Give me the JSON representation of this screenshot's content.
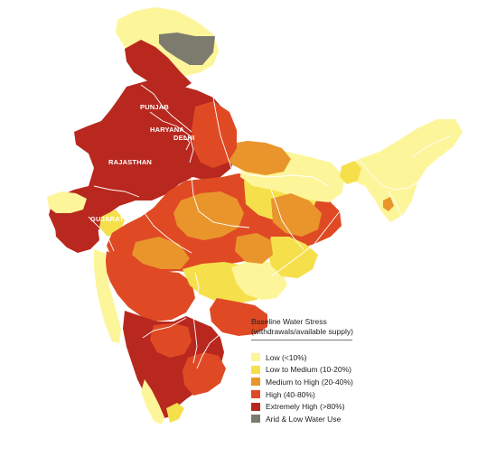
{
  "colors": {
    "low": "#fdf59a",
    "low_medium": "#f5e04c",
    "medium_high": "#e9952c",
    "high": "#df4a24",
    "extreme": "#b8281e",
    "arid": "#7d7b6e",
    "border": "#ffffff"
  },
  "labels": {
    "punjab": "PUNJAB",
    "haryana": "HARYANA",
    "delhi": "DELHI",
    "rajasthan": "RAJASTHAN",
    "gujarat": "GUJARAT"
  },
  "legend": {
    "title_line1": "Baseline Water Stress",
    "title_line2": "(withdrawals/available supply)",
    "items": [
      {
        "label": "Low (<10%)",
        "color": "#fdf59a"
      },
      {
        "label": "Low to Medium (10-20%)",
        "color": "#f5e04c"
      },
      {
        "label": "Medium to High (20-40%)",
        "color": "#e9952c"
      },
      {
        "label": "High (40-80%)",
        "color": "#df4a24"
      },
      {
        "label": "Extremely High (>80%)",
        "color": "#b8281e"
      },
      {
        "label": "Arid & Low Water Use",
        "color": "#7d7b6e"
      }
    ]
  }
}
